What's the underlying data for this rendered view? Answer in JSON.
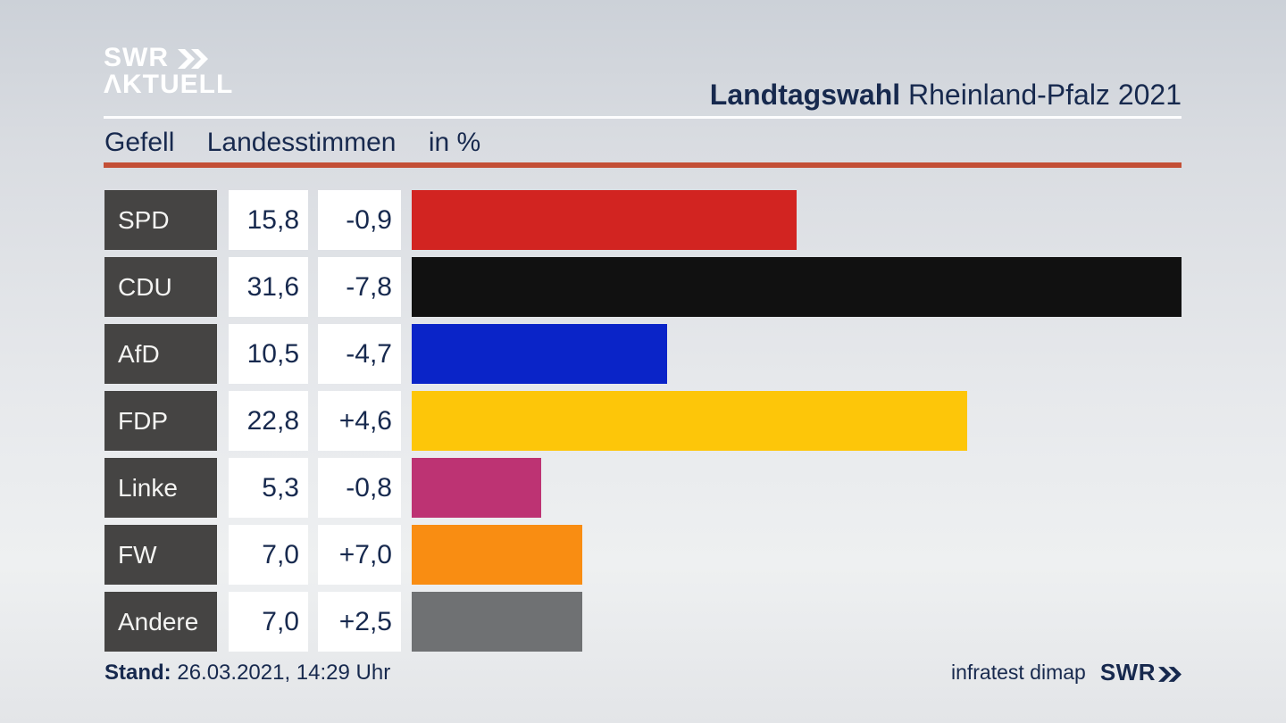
{
  "header": {
    "logo_line1": "SWR",
    "logo_line2": "ΛKTUELL",
    "title_bold": "Landtagswahl",
    "title_rest": "Rheinland-Pfalz 2021",
    "subtitle_region": "Gefell",
    "subtitle_measure": "Landesstimmen",
    "subtitle_unit": "in %"
  },
  "chart_data": {
    "type": "bar",
    "orientation": "horizontal",
    "title": "Landtagswahl Rheinland-Pfalz 2021",
    "subtitle": "Gefell Landesstimmen in %",
    "unit": "%",
    "xmax": 31.6,
    "categories": [
      "SPD",
      "CDU",
      "AfD",
      "FDP",
      "Linke",
      "FW",
      "Andere"
    ],
    "values": [
      15.8,
      31.6,
      10.5,
      22.8,
      5.3,
      7.0,
      7.0
    ],
    "value_labels": [
      "15,8",
      "31,6",
      "10,5",
      "22,8",
      "5,3",
      "7,0",
      "7,0"
    ],
    "change_labels": [
      "-0,9",
      "-7,8",
      "-4,7",
      "+4,6",
      "-0,8",
      "+7,0",
      "+2,5"
    ],
    "bar_colors": [
      "#d22421",
      "#111111",
      "#0a24c8",
      "#fdc609",
      "#bd3373",
      "#f98d12",
      "#6f7173"
    ]
  },
  "footer": {
    "stand_label": "Stand:",
    "stand_value": "26.03.2021, 14:29 Uhr",
    "source": "infratest dimap",
    "logo_text": "SWR"
  },
  "colors": {
    "navy": "#17294e",
    "accent_rule": "#c34f36",
    "label_box": "#454443",
    "box_white": "#ffffff"
  }
}
